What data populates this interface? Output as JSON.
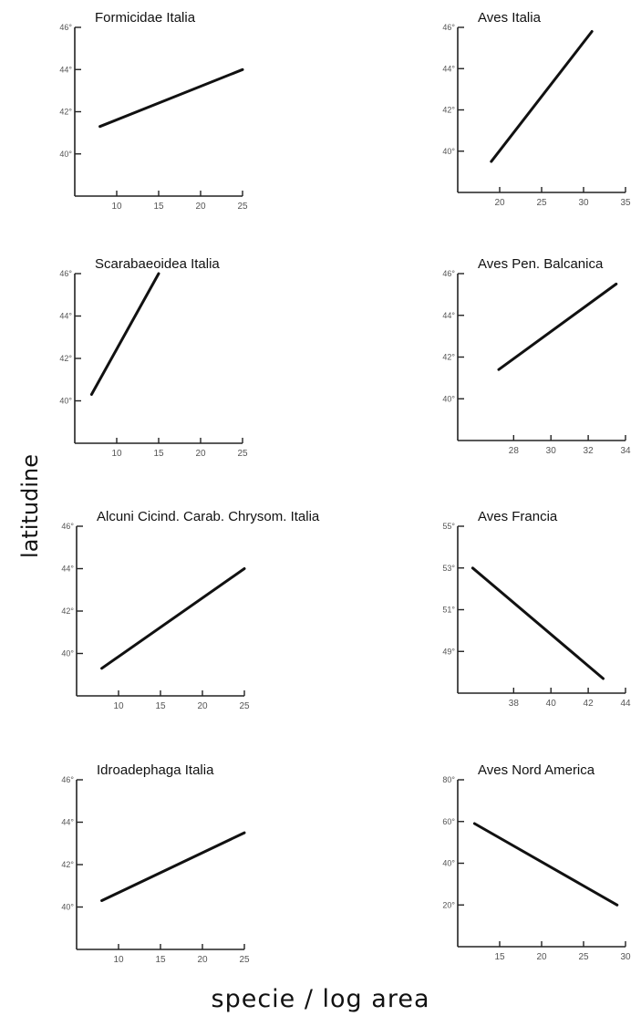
{
  "figure": {
    "ylabel": "latitudine",
    "xlabel": "specie / log  area"
  },
  "chart_data": [
    {
      "type": "line",
      "title": "Formicidae Italia",
      "xlim": [
        5,
        25
      ],
      "ylim": [
        38,
        46
      ],
      "xticks": [
        10,
        15,
        20,
        25
      ],
      "xticklabels": [
        "10",
        "15",
        "20",
        "25"
      ],
      "yticks": [
        46,
        44,
        42,
        40
      ],
      "yticklabels": [
        "46°",
        "44°",
        "42°",
        "40°"
      ],
      "grid": false,
      "series": [
        {
          "x": [
            8,
            25
          ],
          "y": [
            41.3,
            44.0
          ]
        }
      ]
    },
    {
      "type": "line",
      "title": "Aves Italia",
      "xlim": [
        15,
        35
      ],
      "ylim": [
        38,
        46
      ],
      "xticks": [
        20,
        25,
        30,
        35
      ],
      "xticklabels": [
        "20",
        "25",
        "30",
        "35"
      ],
      "yticks": [
        46,
        44,
        42,
        40
      ],
      "yticklabels": [
        "46°",
        "44°",
        "42°",
        "40°"
      ],
      "grid": false,
      "series": [
        {
          "x": [
            19,
            31
          ],
          "y": [
            39.5,
            45.8
          ]
        }
      ]
    },
    {
      "type": "line",
      "title": "Scarabaeoidea Italia",
      "xlim": [
        5,
        25
      ],
      "ylim": [
        38,
        46
      ],
      "xticks": [
        10,
        15,
        20,
        25
      ],
      "xticklabels": [
        "10",
        "15",
        "20",
        "25"
      ],
      "yticks": [
        46,
        44,
        42,
        40
      ],
      "yticklabels": [
        "46°",
        "44°",
        "42°",
        "40°"
      ],
      "grid": false,
      "series": [
        {
          "x": [
            7,
            15
          ],
          "y": [
            40.3,
            46.0
          ]
        }
      ]
    },
    {
      "type": "line",
      "title": "Aves Pen. Balcanica",
      "xlim": [
        25,
        34
      ],
      "ylim": [
        38,
        46
      ],
      "xticks": [
        28,
        30,
        32,
        34
      ],
      "xticklabels": [
        "28",
        "30",
        "32",
        "34"
      ],
      "yticks": [
        46,
        44,
        42,
        40
      ],
      "yticklabels": [
        "46°",
        "44°",
        "42°",
        "40°"
      ],
      "grid": false,
      "series": [
        {
          "x": [
            27.2,
            33.5
          ],
          "y": [
            41.4,
            45.5
          ]
        }
      ]
    },
    {
      "type": "line",
      "title": "Alcuni Cicind. Carab. Chrysom. Italia",
      "xlim": [
        5,
        25
      ],
      "ylim": [
        38,
        46
      ],
      "xticks": [
        10,
        15,
        20,
        25
      ],
      "xticklabels": [
        "10",
        "15",
        "20",
        "25"
      ],
      "yticks": [
        46,
        44,
        42,
        40
      ],
      "yticklabels": [
        "46°",
        "44°",
        "42°",
        "40°"
      ],
      "grid": false,
      "series": [
        {
          "x": [
            8,
            25
          ],
          "y": [
            39.3,
            44.0
          ]
        }
      ]
    },
    {
      "type": "line",
      "title": "Aves Francia",
      "xlim": [
        35,
        44
      ],
      "ylim": [
        47,
        55
      ],
      "xticks": [
        38,
        40,
        42,
        44
      ],
      "xticklabels": [
        "38",
        "40",
        "42",
        "44"
      ],
      "yticks": [
        55,
        53,
        51,
        49
      ],
      "yticklabels": [
        "55°",
        "53°",
        "51°",
        "49°"
      ],
      "grid": false,
      "series": [
        {
          "x": [
            35.8,
            42.8
          ],
          "y": [
            53.0,
            47.7
          ]
        }
      ]
    },
    {
      "type": "line",
      "title": "Idroadephaga Italia",
      "xlim": [
        5,
        25
      ],
      "ylim": [
        38,
        46
      ],
      "xticks": [
        10,
        15,
        20,
        25
      ],
      "xticklabels": [
        "10",
        "15",
        "20",
        "25"
      ],
      "yticks": [
        46,
        44,
        42,
        40
      ],
      "yticklabels": [
        "46°",
        "44°",
        "42°",
        "40°"
      ],
      "grid": false,
      "series": [
        {
          "x": [
            8,
            25
          ],
          "y": [
            40.3,
            43.5
          ]
        }
      ]
    },
    {
      "type": "line",
      "title": "Aves Nord America",
      "xlim": [
        10,
        30
      ],
      "ylim": [
        0,
        80
      ],
      "xticks": [
        15,
        20,
        25,
        30
      ],
      "xticklabels": [
        "15",
        "20",
        "25",
        "30"
      ],
      "yticks": [
        80,
        60,
        40,
        20
      ],
      "yticklabels": [
        "80°",
        "60°",
        "40°",
        "20°"
      ],
      "grid": false,
      "series": [
        {
          "x": [
            12,
            29
          ],
          "y": [
            59,
            20
          ]
        }
      ]
    }
  ]
}
